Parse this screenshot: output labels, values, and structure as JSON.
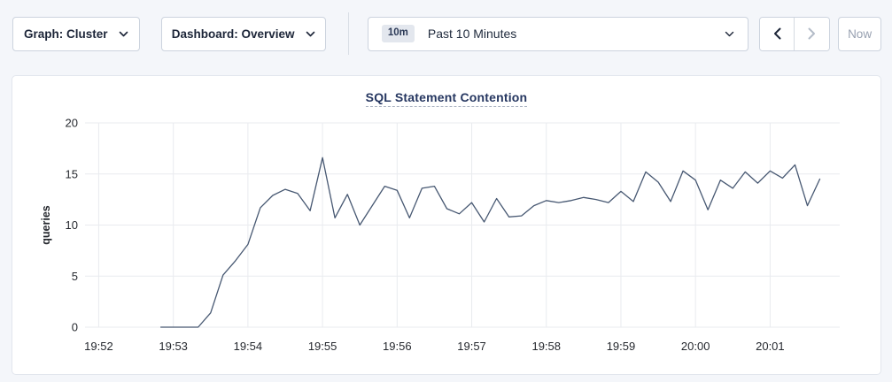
{
  "colors": {
    "page_bg": "#f4f6fa",
    "card_bg": "#ffffff",
    "card_border": "#e2e6ed",
    "control_border": "#ccd3de",
    "text_dark": "#1c2538",
    "text_disabled": "#b4bcc8",
    "now_text": "#98a1b1",
    "badge_bg": "#e3e7ee",
    "grid_line": "#e9ebef",
    "series_line": "#475872",
    "title_color": "#253660"
  },
  "toolbar": {
    "graph_dropdown_label": "Graph: Cluster",
    "dashboard_dropdown_label": "Dashboard: Overview",
    "time_badge": "10m",
    "time_label": "Past 10 Minutes",
    "now_label": "Now"
  },
  "chart_data": {
    "type": "line",
    "title": "SQL Statement Contention",
    "xlabel": "",
    "ylabel": "queries",
    "ylim": [
      0,
      20
    ],
    "yticks": [
      0,
      5,
      10,
      15,
      20
    ],
    "x_tick_labels": [
      "19:52",
      "19:53",
      "19:54",
      "19:55",
      "19:56",
      "19:57",
      "19:58",
      "19:59",
      "20:00",
      "20:01"
    ],
    "x_tick_seconds": [
      0,
      60,
      120,
      180,
      240,
      300,
      360,
      420,
      480,
      540
    ],
    "x_domain_seconds": [
      -11,
      596
    ],
    "grid": true,
    "legend_position": "none",
    "series": [
      {
        "name": "queries",
        "x_seconds": [
          50,
          60,
          70,
          80,
          90,
          100,
          110,
          120,
          130,
          140,
          150,
          160,
          170,
          180,
          190,
          200,
          210,
          220,
          230,
          240,
          250,
          260,
          270,
          280,
          290,
          300,
          310,
          320,
          330,
          340,
          350,
          360,
          370,
          380,
          390,
          400,
          410,
          420,
          430,
          440,
          450,
          460,
          470,
          480,
          490,
          500,
          510,
          520,
          530,
          540,
          550,
          560,
          570,
          580
        ],
        "values": [
          0,
          0,
          0,
          0,
          1.4,
          5.1,
          6.5,
          8.1,
          11.7,
          12.9,
          13.5,
          13.1,
          11.4,
          16.6,
          10.7,
          13.0,
          10.0,
          11.9,
          13.8,
          13.4,
          10.7,
          13.6,
          13.8,
          11.6,
          11.1,
          12.2,
          10.3,
          12.6,
          10.8,
          10.9,
          11.9,
          12.4,
          12.2,
          12.4,
          12.7,
          12.5,
          12.2,
          13.3,
          12.3,
          15.2,
          14.2,
          12.3,
          15.3,
          14.4,
          11.5,
          14.4,
          13.6,
          15.2,
          14.1,
          15.3,
          14.6,
          15.9,
          11.9,
          14.5
        ]
      }
    ]
  }
}
